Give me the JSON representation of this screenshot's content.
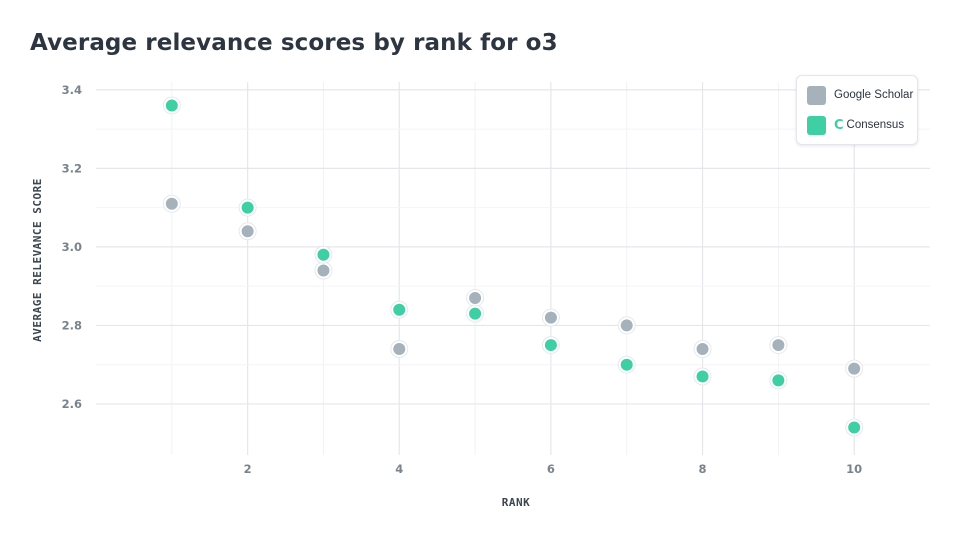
{
  "chart_data": {
    "type": "scatter",
    "title": "Average relevance scores by rank for o3",
    "xlabel": "RANK",
    "ylabel": "AVERAGE RELEVANCE SCORE",
    "xlim": [
      0,
      11
    ],
    "ylim": [
      2.47,
      3.42
    ],
    "xticks": [
      2,
      4,
      6,
      8,
      10
    ],
    "yticks": [
      2.6,
      2.8,
      3.0,
      3.2,
      3.4
    ],
    "grid": true,
    "legend_position": "top-right",
    "series": [
      {
        "name": "Google Scholar",
        "color": "#a6b2bb",
        "x": [
          1,
          2,
          3,
          4,
          5,
          6,
          7,
          8,
          9,
          10
        ],
        "y": [
          3.11,
          3.04,
          2.94,
          2.74,
          2.87,
          2.82,
          2.8,
          2.74,
          2.75,
          2.69
        ]
      },
      {
        "name": "Consensus",
        "color": "#3ecfa4",
        "x": [
          1,
          2,
          3,
          4,
          5,
          6,
          7,
          8,
          9,
          10
        ],
        "y": [
          3.36,
          3.1,
          2.98,
          2.84,
          2.83,
          2.75,
          2.7,
          2.67,
          2.66,
          2.54
        ]
      }
    ]
  },
  "legend": {
    "google_label": "Google Scholar",
    "consensus_label": "Consensus",
    "consensus_icon": "consensus-logo-icon"
  }
}
